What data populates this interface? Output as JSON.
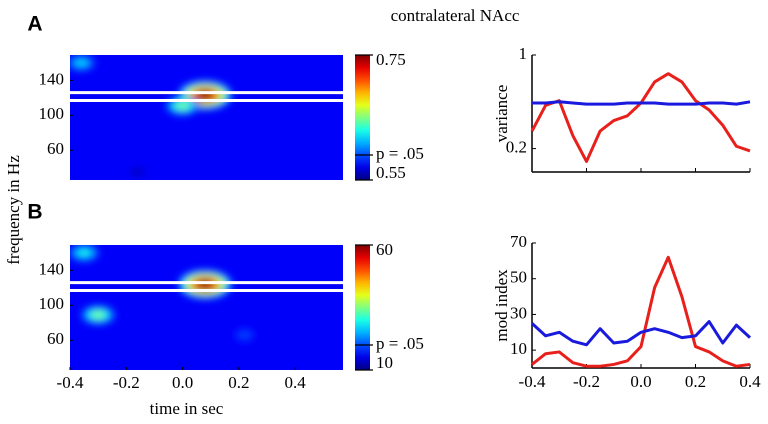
{
  "title": "contralateral NAcc",
  "chart_data": [
    {
      "type": "heatmap",
      "panel": "A",
      "ylabel": "frequency in Hz",
      "xlim": [
        -0.4,
        0.57
      ],
      "ylim": [
        26,
        169
      ],
      "yticks": [
        60,
        100,
        140
      ],
      "colorbar": {
        "clim": [
          0.55,
          0.75
        ],
        "ticks": [
          0.75,
          {
            "value": 0.59,
            "label": "p = .05"
          },
          0.55
        ]
      },
      "band": [
        117,
        126
      ],
      "spots": [
        {
          "x": 0.08,
          "y": 123,
          "value": 0.75
        },
        {
          "x": 0.0,
          "y": 111,
          "value": 0.65
        },
        {
          "x": -0.36,
          "y": 160,
          "value": 0.62
        },
        {
          "x": -0.16,
          "y": 35,
          "value": 0.56
        }
      ]
    },
    {
      "type": "line",
      "ylabel": "variance",
      "x": [
        -0.4,
        -0.35,
        -0.3,
        -0.25,
        -0.2,
        -0.15,
        -0.1,
        -0.05,
        0,
        0.05,
        0.1,
        0.15,
        0.2,
        0.25,
        0.3,
        0.35,
        0.4
      ],
      "xlim": [
        -0.4,
        0.4
      ],
      "ylim": [
        0,
        1
      ],
      "yticks": [
        0.2,
        1
      ],
      "xticks": [
        -0.4,
        -0.2,
        0,
        0.2,
        0.4
      ],
      "xtick_labels": false,
      "series": [
        {
          "color": "#e8201c",
          "values": [
            0.35,
            0.57,
            0.61,
            0.31,
            0.09,
            0.35,
            0.44,
            0.48,
            0.59,
            0.77,
            0.84,
            0.77,
            0.61,
            0.53,
            0.4,
            0.22,
            0.18
          ]
        },
        {
          "color": "#1a1adf",
          "values": [
            0.59,
            0.59,
            0.6,
            0.59,
            0.58,
            0.58,
            0.58,
            0.59,
            0.59,
            0.59,
            0.58,
            0.58,
            0.58,
            0.59,
            0.59,
            0.58,
            0.6
          ]
        }
      ]
    },
    {
      "type": "heatmap",
      "panel": "B",
      "xlabel": "time in sec",
      "xlim": [
        -0.4,
        0.57
      ],
      "ylim": [
        26,
        169
      ],
      "yticks": [
        60,
        100,
        140
      ],
      "xticks": [
        -0.4,
        -0.2,
        {
          "value": 0,
          "label": "0.0"
        },
        0.2,
        0.4
      ],
      "xtick_labels": true,
      "colorbar": {
        "clim": [
          10,
          60
        ],
        "ticks": [
          60,
          {
            "value": 20,
            "label": "p = .05"
          },
          10
        ]
      },
      "band": [
        117,
        126
      ],
      "spots": [
        {
          "x": 0.08,
          "y": 124,
          "value": 60
        },
        {
          "x": -0.3,
          "y": 89,
          "value": 35
        },
        {
          "x": -0.35,
          "y": 160,
          "value": 30
        },
        {
          "x": 0.22,
          "y": 66,
          "value": 20
        }
      ]
    },
    {
      "type": "line",
      "ylabel": "mod index",
      "x": [
        -0.4,
        -0.35,
        -0.3,
        -0.25,
        -0.2,
        -0.15,
        -0.1,
        -0.05,
        0,
        0.05,
        0.1,
        0.15,
        0.2,
        0.25,
        0.3,
        0.35,
        0.4
      ],
      "xlim": [
        -0.4,
        0.4
      ],
      "ylim": [
        0,
        70
      ],
      "yticks": [
        10,
        30,
        50,
        70
      ],
      "xticks": [
        -0.4,
        -0.2,
        {
          "value": 0,
          "label": "0.0"
        },
        0.2,
        0.4
      ],
      "xtick_labels": true,
      "series": [
        {
          "color": "#e8201c",
          "values": [
            2,
            8,
            9,
            3,
            1,
            1,
            2,
            4,
            12,
            45,
            62,
            40,
            12,
            9,
            4,
            1,
            2
          ]
        },
        {
          "color": "#1a1adf",
          "values": [
            25,
            18,
            20,
            15,
            13,
            22,
            14,
            15,
            20,
            22,
            20,
            17,
            18,
            26,
            14,
            24,
            17
          ]
        }
      ]
    }
  ]
}
